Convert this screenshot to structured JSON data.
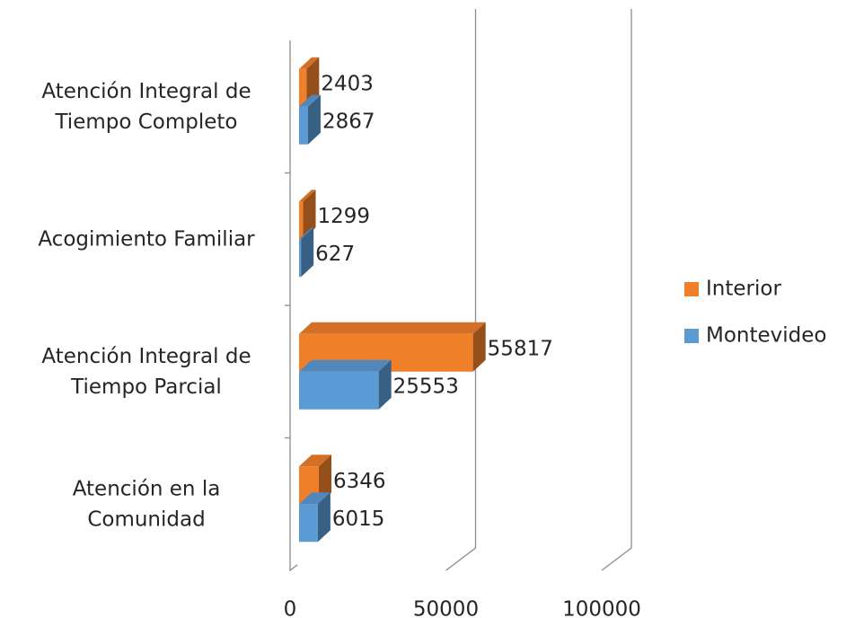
{
  "chart_data": {
    "type": "bar",
    "orientation": "horizontal",
    "three_d": true,
    "categories": [
      "Atención en la Comunidad",
      "Atención Integral de Tiempo Parcial",
      "Acogimiento Familiar",
      "Atención Integral de Tiempo Completo"
    ],
    "series": [
      {
        "name": "Interior",
        "color": "#f07f2a",
        "values": [
          6346,
          55817,
          1299,
          2403
        ]
      },
      {
        "name": "Montevideo",
        "color": "#5b9bd5",
        "values": [
          6015,
          25553,
          627,
          2867
        ]
      }
    ],
    "xlim": [
      0,
      100000
    ],
    "xticks": [
      0,
      50000,
      100000
    ],
    "grid": true,
    "legend": "right"
  }
}
